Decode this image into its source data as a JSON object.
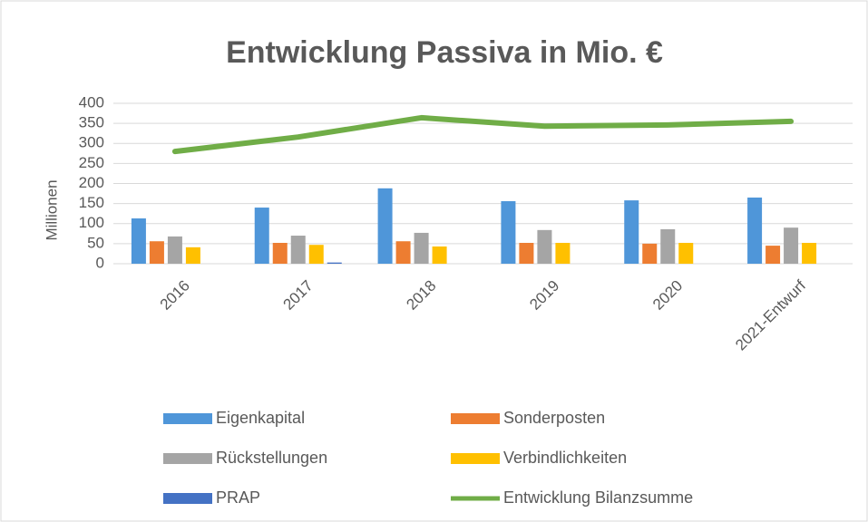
{
  "chart_data": {
    "type": "bar",
    "title": "Entwicklung Passiva in Mio. €",
    "y_label": "Millionen",
    "categories": [
      "2016",
      "2017",
      "2018",
      "2019",
      "2020",
      "2021-Entwurf"
    ],
    "series": [
      {
        "name": "Eigenkapital",
        "color": "#4f96d9",
        "values": [
          113,
          140,
          188,
          156,
          158,
          165
        ]
      },
      {
        "name": "Sonderposten",
        "color": "#ed7d31",
        "values": [
          56,
          52,
          56,
          52,
          50,
          45
        ]
      },
      {
        "name": "Rückstellungen",
        "color": "#a5a5a5",
        "values": [
          68,
          70,
          77,
          84,
          86,
          90
        ]
      },
      {
        "name": "Verbindlichkeiten",
        "color": "#ffc000",
        "values": [
          41,
          47,
          43,
          52,
          52,
          52
        ]
      },
      {
        "name": "PRAP",
        "color": "#4472c4",
        "values": [
          0,
          3,
          0,
          0,
          0,
          0
        ]
      },
      {
        "name": "Entwicklung Bilanzsumme",
        "color": "#70ad47",
        "type": "line",
        "values": [
          280,
          316,
          364,
          343,
          346,
          355
        ]
      }
    ],
    "ylim": [
      0,
      400
    ],
    "yticks": [
      0,
      50,
      100,
      150,
      200,
      250,
      300,
      350,
      400
    ],
    "grid": true,
    "legend": "bottom"
  }
}
